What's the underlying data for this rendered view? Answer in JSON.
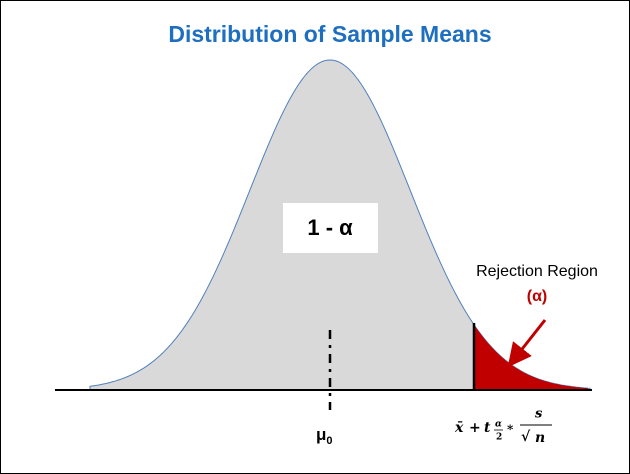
{
  "title": "Distribution of Sample Means",
  "acceptance_label": "1 - α",
  "rejection": {
    "label": "Rejection Region",
    "alpha": "(α)"
  },
  "mean_label": {
    "symbol": "μ",
    "subscript": "0"
  },
  "critical_value": {
    "xbar": "x̄",
    "plus": "+",
    "t": "t",
    "sub_num": "α",
    "sub_den": "2",
    "times": "*",
    "num": "s",
    "root": "√",
    "den": "n"
  }
}
